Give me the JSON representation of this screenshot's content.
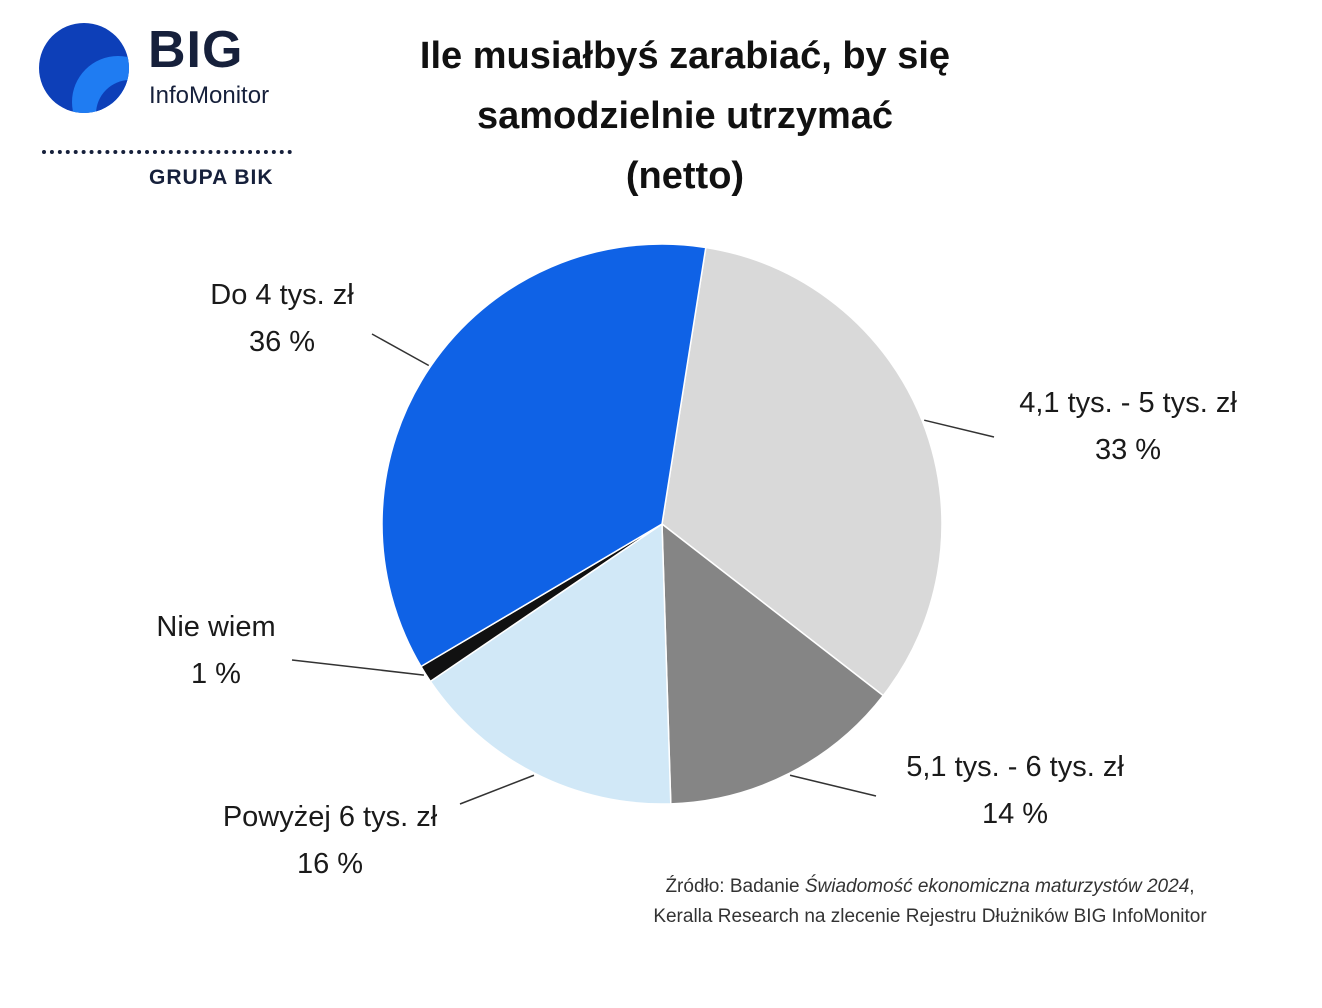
{
  "brand": {
    "name": "BIG",
    "sub": "InfoMonitor",
    "group": "GRUPA BIK",
    "colors": {
      "dark": "#16203b",
      "blue": "#0f62e6",
      "light_blue": "#4c9bff"
    },
    "icon": "big-logo-icon"
  },
  "chart_data": {
    "type": "pie",
    "title_lines": [
      "Ile musiałbyś zarabiać, by się",
      "samodzielnie utrzymać",
      "(netto)"
    ],
    "slices": [
      {
        "label": "4,1 tys. - 5 tys. zł",
        "value": 33,
        "value_label": "33 %",
        "color": "#d9d9d9"
      },
      {
        "label": "5,1 tys. - 6 tys. zł",
        "value": 14,
        "value_label": "14 %",
        "color": "#858585"
      },
      {
        "label": "Powyżej 6 tys. zł",
        "value": 16,
        "value_label": "16 %",
        "color": "#d1e8f7"
      },
      {
        "label": "Nie wiem",
        "value": 1,
        "value_label": "1 %",
        "color": "#111111"
      },
      {
        "label": "Do 4 tys. zł",
        "value": 36,
        "value_label": "36 %",
        "color": "#0f62e6"
      }
    ]
  },
  "source": {
    "prefix": "Źródło: Badanie ",
    "study": "Świadomość ekonomiczna maturzystów 2024",
    "suffix": ",",
    "line2": "Keralla Research na zlecenie Rejestru Dłużników BIG InfoMonitor"
  }
}
